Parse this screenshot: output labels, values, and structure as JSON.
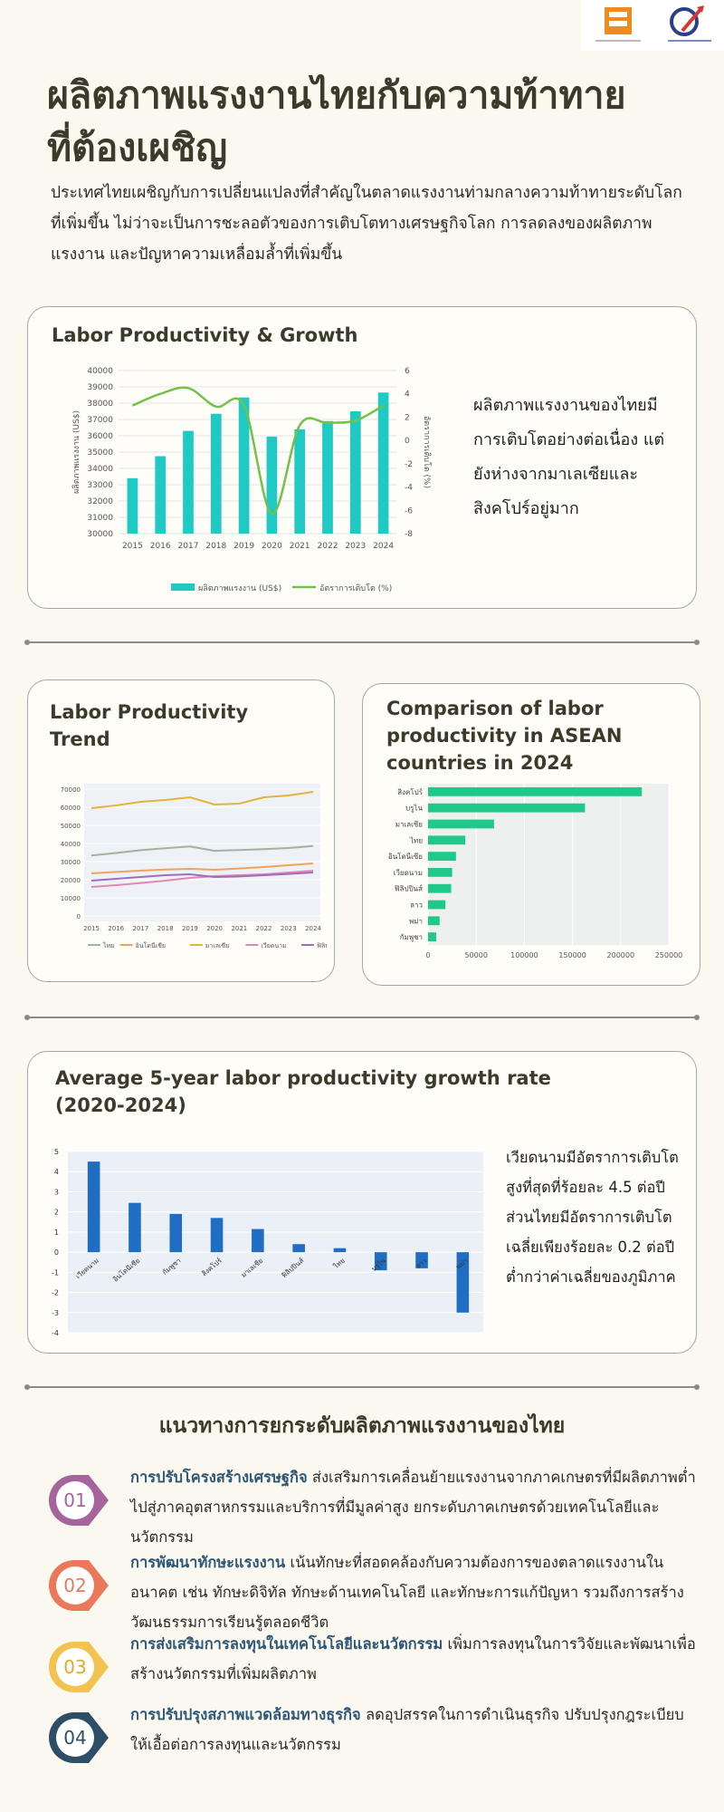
{
  "header": {
    "title": "ผลิตภาพแรงงานไทยกับความท้าทายที่ต้องเผชิญ",
    "intro": "ประเทศไทยเผชิญกับการเปลี่ยนแปลงที่สำคัญในตลาดแรงงานท่ามกลางความท้าทายระดับโลกที่เพิ่มขึ้น ไม่ว่าจะเป็นการชะลอตัวของการเติบโตทางเศรษฐกิจโลก การลดลงของผลิตภาพแรงงาน และปัญหาความเหลื่อมล้ำที่เพิ่มขึ้น"
  },
  "card1": {
    "title": "Labor Productivity & Growth",
    "note": "ผลิตภาพแรงงานของไทยมีการเติบโตอย่างต่อเนื่อง แต่ยังห่างจากมาเลเซียและสิงคโปร์อยู่มาก"
  },
  "card2": {
    "title": "Labor Productivity Trend"
  },
  "card3": {
    "title": "Comparison of labor productivity in ASEAN countries in 2024"
  },
  "card4": {
    "title": "Average 5-year labor productivity growth rate (2020-2024)",
    "note": "เวียดนามมีอัตราการเติบโตสูงที่สุดที่ร้อยละ 4.5 ต่อปี ส่วนไทยมีอัตราการเติบโตเฉลี่ยเพียงร้อยละ 0.2 ต่อปี ต่ำกว่าค่าเฉลี่ยของภูมิภาค"
  },
  "guidelines": {
    "title": "แนวทางการยกระดับผลิตภาพแรงงานของไทย",
    "steps": [
      {
        "num": "01",
        "color": "#a5649a",
        "head": "การปรับโครงสร้างเศรษฐกิจ",
        "text": " ส่งเสริมการเคลื่อนย้ายแรงงานจากภาคเกษตรที่มีผลิตภาพต่ำไปสู่ภาคอุตสาหกรรมและบริการที่มีมูลค่าสูง ยกระดับภาคเกษตรด้วยเทคโนโลยีและนวัตกรรม"
      },
      {
        "num": "02",
        "color": "#e9795a",
        "head": "การพัฒนาทักษะแรงงาน",
        "text": " เน้นทักษะที่สอดคล้องกับความต้องการของตลาดแรงงานในอนาคต เช่น ทักษะดิจิทัล ทักษะด้านเทคโนโลยี และทักษะการแก้ปัญหา รวมถึงการสร้างวัฒนธรรมการเรียนรู้ตลอดชีวิต"
      },
      {
        "num": "03",
        "color": "#f2c44f",
        "head": "การส่งเสริมการลงทุนในเทคโนโลยีและนวัตกรรม",
        "text": " เพิ่มการลงทุนในการวิจัยและพัฒนาเพื่อสร้างนวัตกรรมที่เพิ่มผลิตภาพ"
      },
      {
        "num": "04",
        "color": "#2e4d66",
        "head": "การปรับปรุงสภาพแวดล้อมทางธุรกิจ",
        "text": " ลดอุปสรรคในการดำเนินธุรกิจ ปรับปรุงกฎระเบียบให้เอื้อต่อการลงทุนและนวัตกรรม"
      }
    ]
  },
  "chart_data": [
    {
      "type": "bar",
      "name": "productivity-growth",
      "categories": [
        "2015",
        "2016",
        "2017",
        "2018",
        "2019",
        "2020",
        "2021",
        "2022",
        "2023",
        "2024"
      ],
      "series": [
        {
          "name": "ผลิตภาพแรงงาน (US$)",
          "type": "bar",
          "color": "#1fc9c4",
          "values": [
            33400,
            34750,
            36300,
            37350,
            38350,
            35950,
            36400,
            36900,
            37500,
            38650
          ]
        },
        {
          "name": "อัตราการเติบโต (%)",
          "type": "line",
          "color": "#72c24a",
          "values": [
            3.0,
            4.0,
            4.5,
            2.9,
            3.0,
            -6.3,
            1.3,
            1.5,
            1.7,
            3.0
          ]
        }
      ],
      "ylabel": "ผลิตภาพแรงงาน (US$)",
      "y2label": "อัตราการเติบโต (%)",
      "ylim": [
        30000,
        40000
      ],
      "yticks": [
        30000,
        31000,
        32000,
        33000,
        34000,
        35000,
        36000,
        37000,
        38000,
        39000,
        40000
      ],
      "y2lim": [
        -8,
        6
      ],
      "y2ticks": [
        6,
        4,
        2,
        0,
        -2,
        -4,
        -6,
        -8
      ],
      "legend": "bottom"
    },
    {
      "type": "line",
      "name": "productivity-trend",
      "x": [
        "2015",
        "2016",
        "2017",
        "2018",
        "2019",
        "2020",
        "2021",
        "2022",
        "2023",
        "2024"
      ],
      "series": [
        {
          "name": "ไทย",
          "color": "#a3b29a",
          "values": [
            33400,
            34750,
            36300,
            37350,
            38350,
            35950,
            36400,
            36900,
            37500,
            38650
          ]
        },
        {
          "name": "อินโดนีเซีย",
          "color": "#f0a35c",
          "values": [
            23500,
            24300,
            25000,
            25600,
            26000,
            25500,
            26200,
            27000,
            28000,
            29000
          ]
        },
        {
          "name": "มาเลเซีย",
          "color": "#e2b43a",
          "values": [
            59500,
            61000,
            63000,
            64000,
            65500,
            61500,
            62000,
            65500,
            66500,
            68500
          ]
        },
        {
          "name": "เวียดนาม",
          "color": "#e08ab3",
          "values": [
            16000,
            17000,
            18200,
            19500,
            21000,
            22000,
            22500,
            23000,
            24000,
            25000
          ]
        },
        {
          "name": "ฟิลิปปินส์",
          "color": "#9a6fbe",
          "values": [
            19500,
            20500,
            21500,
            22500,
            23000,
            21500,
            21800,
            22500,
            23200,
            24000
          ]
        }
      ],
      "ylim": [
        0,
        70000
      ],
      "yticks": [
        0,
        10000,
        20000,
        30000,
        40000,
        50000,
        60000,
        70000
      ],
      "legend": "bottom"
    },
    {
      "type": "bar",
      "orientation": "horizontal",
      "name": "asean-2024",
      "color": "#1fc98a",
      "categories": [
        "สิงคโปร์",
        "บรูไน",
        "มาเลเซีย",
        "ไทย",
        "อินโดนีเซีย",
        "เวียดนาม",
        "ฟิลิปปินส์",
        "ลาว",
        "พม่า",
        "กัมพูชา"
      ],
      "values": [
        222000,
        163000,
        68500,
        38650,
        29000,
        25000,
        24000,
        18000,
        12000,
        8500
      ],
      "xlim": [
        0,
        250000
      ],
      "xticks": [
        0,
        50000,
        100000,
        150000,
        200000,
        250000
      ]
    },
    {
      "type": "bar",
      "name": "growth-5yr",
      "color": "#1f6ec4",
      "categories": [
        "เวียดนาม",
        "อินโดนีเซีย",
        "กัมพูชา",
        "สิงคโปร์",
        "มาเลเซีย",
        "ฟิลิปปินส์",
        "ไทย",
        "บรูไน",
        "ลาว",
        "พม่า"
      ],
      "values": [
        4.5,
        2.45,
        1.9,
        1.7,
        1.15,
        0.4,
        0.2,
        -0.9,
        -0.8,
        -3.0
      ],
      "ylim": [
        -4,
        5
      ],
      "yticks": [
        5,
        4,
        3,
        2,
        1,
        0,
        -1,
        -2,
        -3,
        -4
      ]
    }
  ]
}
